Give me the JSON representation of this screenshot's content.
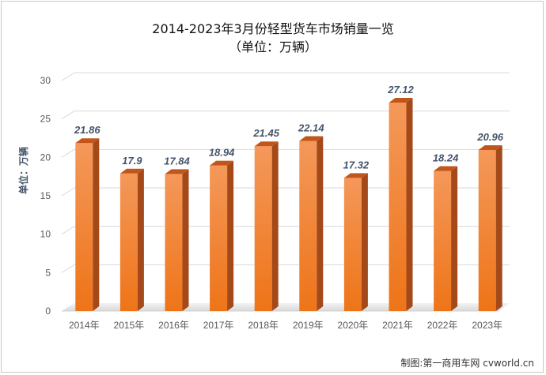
{
  "chart_data": {
    "type": "bar",
    "title": "2014-2023年3月份轻型货车市场销量一览",
    "subtitle": "（单位：万辆）",
    "ylabel": "单位：万辆",
    "xlabel": "",
    "categories": [
      "2014年",
      "2015年",
      "2016年",
      "2017年",
      "2018年",
      "2019年",
      "2020年",
      "2021年",
      "2022年",
      "2023年"
    ],
    "values": [
      21.86,
      17.9,
      17.84,
      18.94,
      21.45,
      22.14,
      17.32,
      27.12,
      18.24,
      20.96
    ],
    "data_labels": [
      "21.86",
      "17.9",
      "17.84",
      "18.94",
      "21.45",
      "22.14",
      "17.32",
      "27.12",
      "18.24",
      "20.96"
    ],
    "ylim": [
      0,
      30
    ],
    "yticks": [
      0,
      5,
      10,
      15,
      20,
      25,
      30
    ],
    "ytick_labels": [
      "0",
      "5",
      "10",
      "15",
      "20",
      "25",
      "30"
    ],
    "grid": true,
    "legend": "none",
    "colors": {
      "bar_front": "#f07e2a",
      "bar_top": "#c2561a",
      "bar_side": "#a4491a",
      "label": "#44546a"
    }
  },
  "credit": "制图:第一商用车网 cvworld.cn"
}
